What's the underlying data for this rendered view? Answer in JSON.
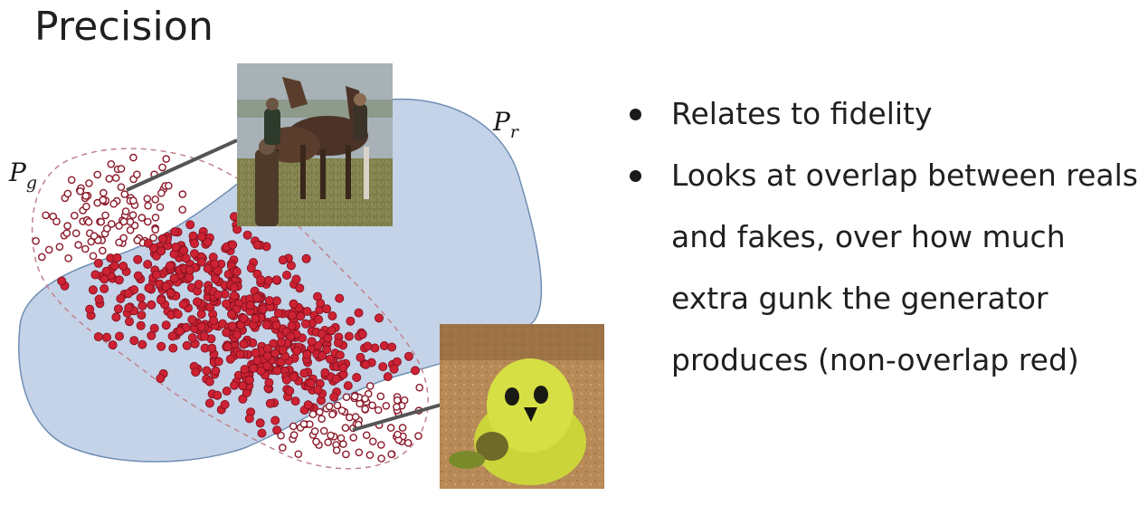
{
  "title": "Precision",
  "bullets": [
    "Relates to fidelity",
    "Looks at overlap between reals and fakes, over how much extra gunk the generator produces (non-overlap red)"
  ],
  "labels": {
    "real_dist": {
      "main": "P",
      "sub": "r"
    },
    "gen_dist": {
      "main": "P",
      "sub": "g"
    }
  },
  "images": [
    {
      "name": "horses-photo",
      "subject": "group of horses with people in a field"
    },
    {
      "name": "yellow-bird-photo",
      "subject": "green-yellow fuzzy bird-like object on dirt"
    }
  ],
  "colors": {
    "real_region": "#c5d3e8",
    "real_outline": "#6f8fb4",
    "gen_outline": "#c0828d",
    "inside_dot": "#cc2233",
    "outside_dot": "#8b1a2a"
  }
}
